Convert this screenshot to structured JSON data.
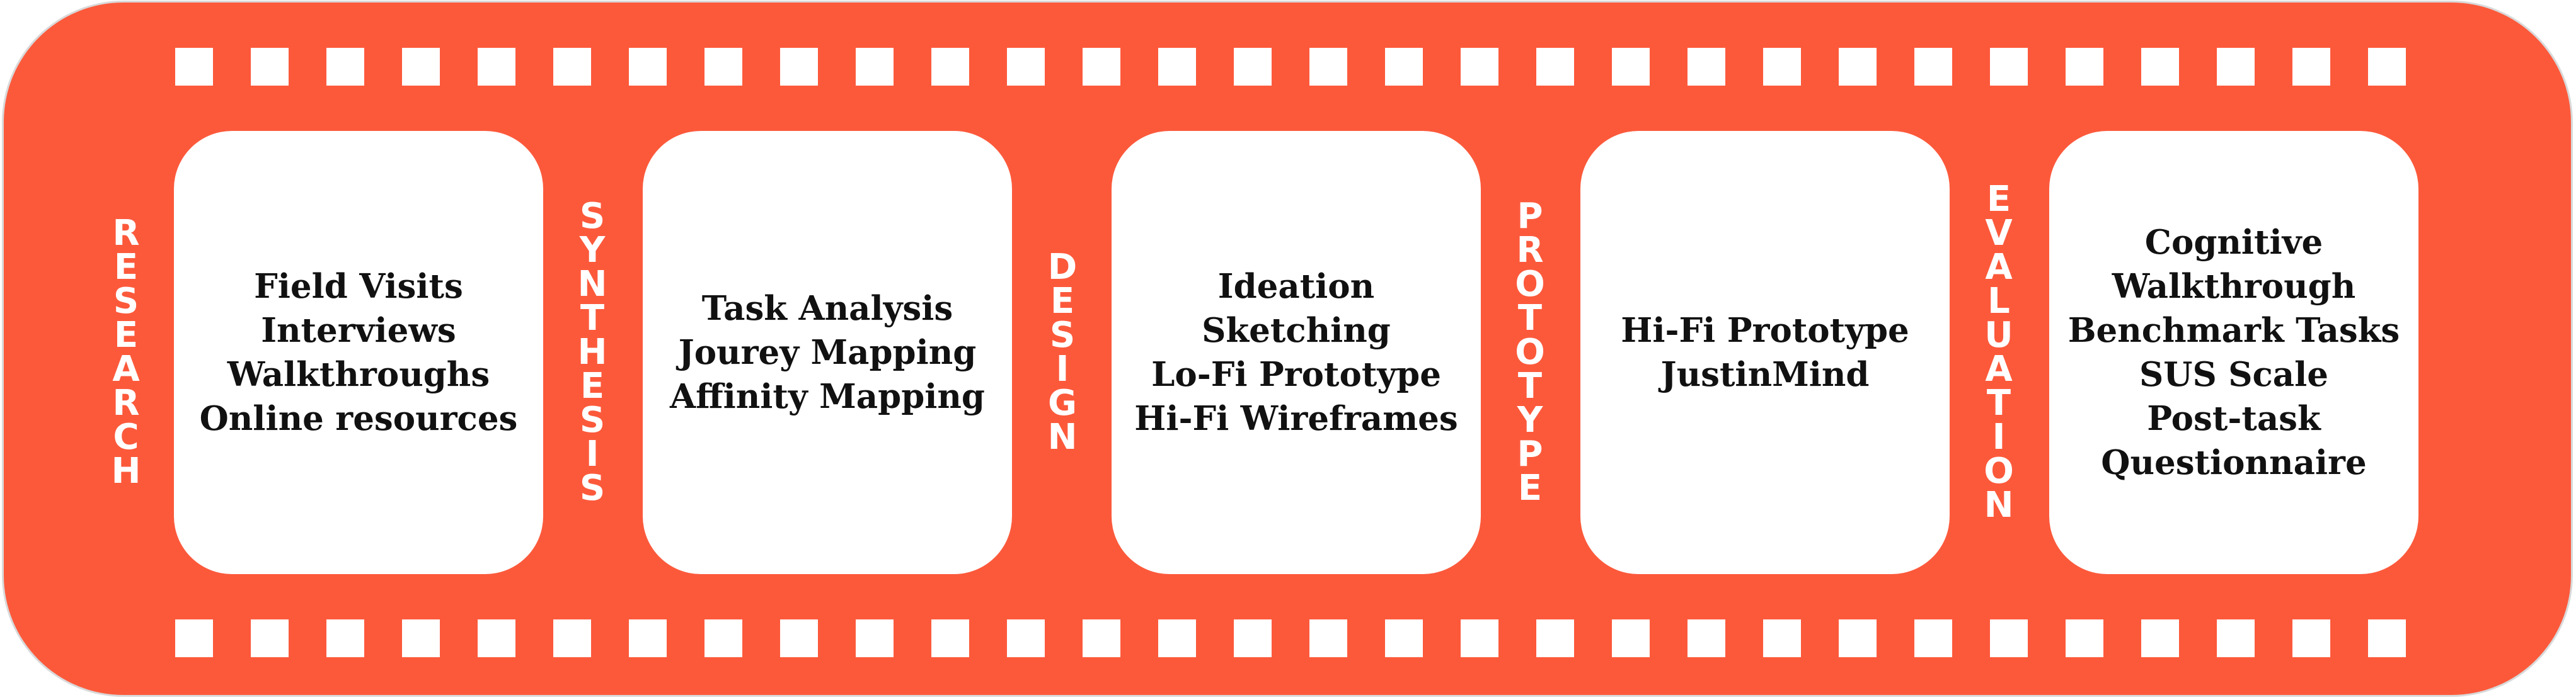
{
  "colors": {
    "film": "#fc593b",
    "card": "#ffffff",
    "card_text": "#111111",
    "stage_text": "#ffffff"
  },
  "stages": [
    "RESEARCH",
    "SYNTHESIS",
    "DESIGN",
    "PROTOTYPE",
    "EVALUATION"
  ],
  "cards": [
    {
      "items": [
        "Field Visits",
        "Interviews",
        "Walkthroughs",
        "Online resources"
      ]
    },
    {
      "items": [
        "Task Analysis",
        "Jourey Mapping",
        "Affinity Mapping"
      ]
    },
    {
      "items": [
        "Ideation",
        "Sketching",
        "Lo-Fi Prototype",
        "Hi-Fi Wireframes"
      ]
    },
    {
      "items": [
        "Hi-Fi Prototype",
        "JustinMind"
      ]
    },
    {
      "items": [
        "Cognitive",
        "Walkthrough",
        "Benchmark Tasks",
        "SUS Scale",
        "Post-task",
        "Questionnaire"
      ]
    }
  ]
}
